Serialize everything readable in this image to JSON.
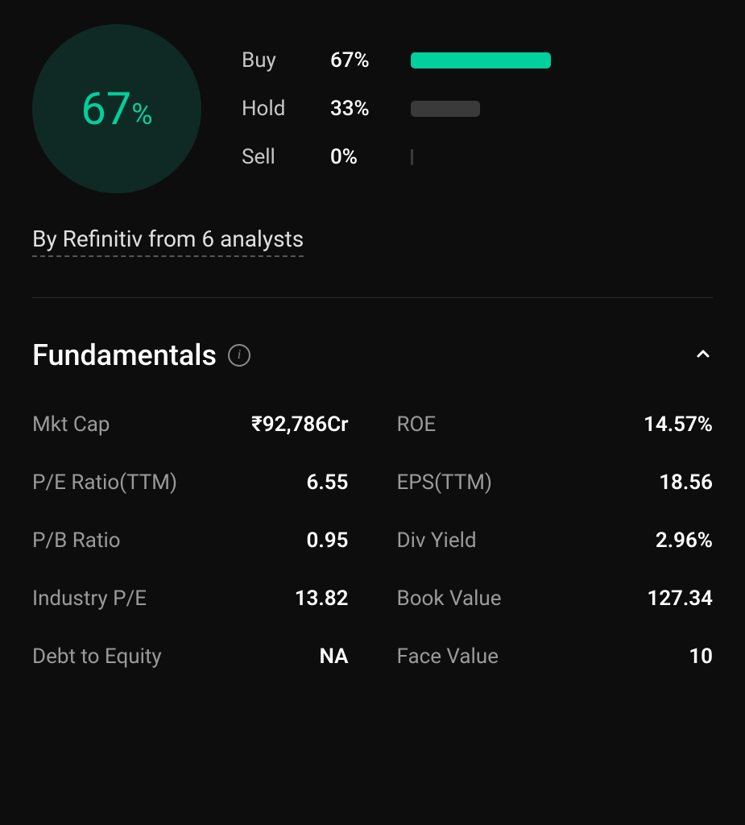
{
  "rating": {
    "circle_value": "67",
    "circle_pct": "%",
    "circle_color": "#00d09c",
    "circle_bg": "#0f2a24",
    "rows": [
      {
        "label": "Buy",
        "pct": "67%",
        "width": 67,
        "color": "#00d09c"
      },
      {
        "label": "Hold",
        "pct": "33%",
        "width": 33,
        "color": "#3a3a3a"
      },
      {
        "label": "Sell",
        "pct": "0%",
        "width": 1,
        "color": "#3a3a3a"
      }
    ],
    "source": "By Refinitiv from 6 analysts"
  },
  "fundamentals": {
    "title": "Fundamentals",
    "metrics": [
      {
        "label": "Mkt Cap",
        "value": "₹92,786Cr"
      },
      {
        "label": "ROE",
        "value": "14.57%"
      },
      {
        "label": "P/E Ratio(TTM)",
        "value": "6.55"
      },
      {
        "label": "EPS(TTM)",
        "value": "18.56"
      },
      {
        "label": "P/B Ratio",
        "value": "0.95"
      },
      {
        "label": "Div Yield",
        "value": "2.96%"
      },
      {
        "label": "Industry P/E",
        "value": "13.82"
      },
      {
        "label": "Book Value",
        "value": "127.34"
      },
      {
        "label": "Debt to Equity",
        "value": "NA"
      },
      {
        "label": "Face Value",
        "value": "10"
      }
    ]
  },
  "colors": {
    "bg": "#0d0d0d",
    "text_primary": "#ffffff",
    "text_secondary": "#9a9a9a",
    "accent": "#00d09c",
    "divider": "#2a2a2a"
  }
}
